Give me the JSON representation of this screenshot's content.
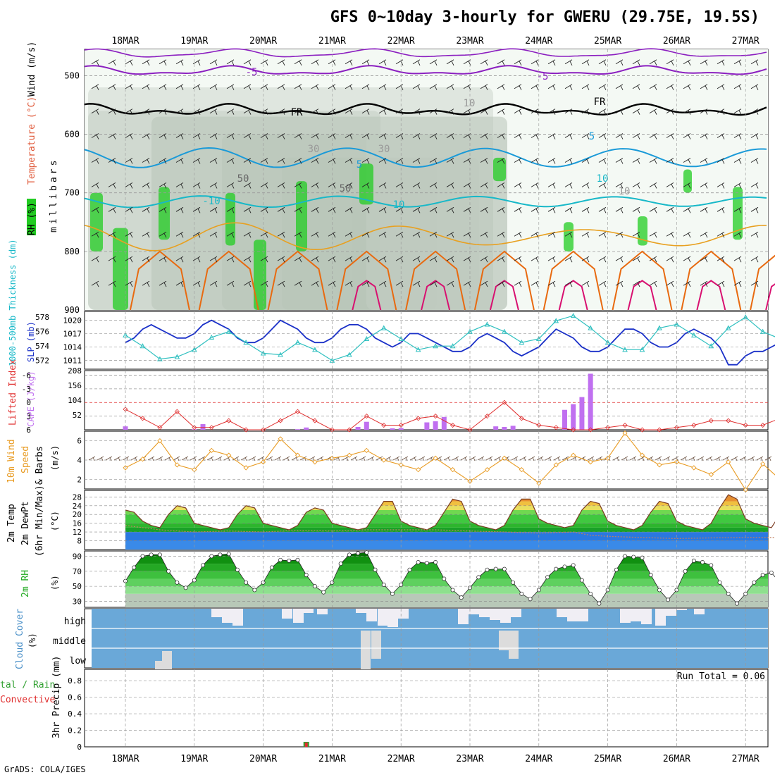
{
  "title": "GFS 0~10day 3-hourly for GWERU (29.75E, 19.5S)",
  "credit": "GrADS: COLA/IGES",
  "date_labels": [
    "18MAR",
    "19MAR",
    "20MAR",
    "21MAR",
    "22MAR",
    "23MAR",
    "24MAR",
    "25MAR",
    "26MAR",
    "27MAR"
  ],
  "colors": {
    "rh_green": "#22cc22",
    "rh_light": "#e8f3e8",
    "rh_gray": "#b8c4b8",
    "temp_purple": "#8b1fc0",
    "temp_black": "#000000",
    "temp_blue": "#1a9ad8",
    "temp_cyan": "#17b8c8",
    "temp_orange": "#e8a020",
    "temp_darkorange": "#e86a10",
    "temp_magenta": "#d81070",
    "slp_blue": "#1a30c8",
    "thick_cyan": "#30c0c0",
    "li_red": "#e03030",
    "cape_purple": "#c070f0",
    "wind_orange": "#e89a20",
    "t2m_fill": "#e89030",
    "dew_blue": "#2a78e0",
    "cloud_blue": "#6aa8d8",
    "cloud_gray": "#dcdcdc",
    "precip_green": "#30a030",
    "precip_red": "#e03030"
  },
  "panels": {
    "upper_air": {
      "ylabel_parts": [
        "RH (%)",
        "Temperature (°C)",
        "Wind (m/s)"
      ],
      "yaxis_label": "millibars",
      "ticks": [
        "500",
        "600",
        "700",
        "800",
        "900"
      ],
      "contour_labels": [
        "-5",
        "-5",
        "FR",
        "FR",
        "5",
        "5",
        "10",
        "10",
        "-10",
        "50",
        "50",
        "30",
        "30",
        "10",
        "10"
      ]
    },
    "slp": {
      "ylabel_left": "1000-500mb Thickness (dm)",
      "ylabel_right": "SLP (mb)",
      "ticks_left": [
        "578",
        "576",
        "574",
        "572"
      ],
      "ticks_right": [
        "1020",
        "1017",
        "1014",
        "1011"
      ]
    },
    "cape": {
      "ylabel_left": "Lifted Index",
      "ylabel_right": "CAPE (J/kg)",
      "ticks_left": [
        "-6",
        "-3",
        "0",
        "3",
        "6"
      ],
      "ticks_right": [
        "208",
        "156",
        "104",
        "52"
      ]
    },
    "wind10": {
      "ylabel_parts": [
        "10m Wind",
        "Speed",
        "& Barbs"
      ],
      "units": "(m/s)",
      "ticks": [
        "6",
        "4",
        "2"
      ]
    },
    "temp2m": {
      "ylabel_parts": [
        "2m Temp",
        "2m DewPt",
        "(6hr Min/Max)"
      ],
      "units": "(°C)",
      "ticks": [
        "28",
        "24",
        "20",
        "16",
        "12",
        "8"
      ]
    },
    "rh2m": {
      "ylabel": "2m RH",
      "units": "(%)",
      "ticks": [
        "90",
        "70",
        "50",
        "30"
      ]
    },
    "cloud": {
      "ylabel": "Cloud Cover",
      "units": "(%)",
      "levels": [
        "high",
        "middle",
        "low"
      ]
    },
    "precip": {
      "ylabel_left_1": "tal / Rain",
      "ylabel_left_2": "Convective",
      "ylabel": "3hr Precip (mm)",
      "ticks": [
        "0.8",
        "0.6",
        "0.4",
        "0.2",
        "0"
      ],
      "annotation": "Run Total = 0.06"
    }
  },
  "chart_data": [
    {
      "type": "line",
      "name": "SLP",
      "units": "mb",
      "ylim": [
        1009,
        1022
      ],
      "x_days": [
        0,
        0.125,
        0.25,
        0.375,
        0.5,
        0.625,
        0.75,
        0.875,
        1,
        1.125,
        1.25,
        1.375,
        1.5,
        1.625,
        1.75,
        1.875,
        2,
        2.125,
        2.25,
        2.375,
        2.5,
        2.625,
        2.75,
        2.875,
        3,
        3.125,
        3.25,
        3.375,
        3.5,
        3.625,
        3.75,
        3.875,
        4,
        4.125,
        4.25,
        4.375,
        4.5,
        4.625,
        4.75,
        4.875,
        5,
        5.125,
        5.25,
        5.375,
        5.5,
        5.625,
        5.75,
        5.875,
        6,
        6.125,
        6.25,
        6.375,
        6.5,
        6.625,
        6.75,
        6.875,
        7,
        7.125,
        7.25,
        7.375,
        7.5,
        7.625,
        7.75,
        7.875,
        8,
        8.125,
        8.25,
        8.375,
        8.5,
        8.625,
        8.75,
        8.875,
        9,
        9.125,
        9.25,
        9.375,
        9.5
      ],
      "values": [
        1015,
        1016,
        1018,
        1019,
        1018,
        1017,
        1016,
        1016,
        1017,
        1019,
        1020,
        1019,
        1018,
        1016,
        1015,
        1015,
        1016,
        1018,
        1020,
        1019,
        1018,
        1016,
        1015,
        1015,
        1016,
        1018,
        1019,
        1019,
        1018,
        1016,
        1015,
        1014,
        1015,
        1017,
        1017,
        1016,
        1015,
        1014,
        1013,
        1013,
        1014,
        1016,
        1017,
        1016,
        1015,
        1013,
        1012,
        1013,
        1014,
        1016,
        1018,
        1017,
        1016,
        1014,
        1013,
        1013,
        1014,
        1016,
        1018,
        1018,
        1017,
        1015,
        1014,
        1014,
        1015,
        1017,
        1018,
        1017,
        1016,
        1014,
        1010,
        1010,
        1012,
        1013,
        1013,
        1014,
        1015
      ]
    },
    {
      "type": "line",
      "name": "1000-500mb Thickness",
      "units": "dm",
      "ylim": [
        570.8,
        578.8
      ],
      "x_days": [
        0,
        0.25,
        0.5,
        0.75,
        1,
        1.25,
        1.5,
        1.75,
        2,
        2.25,
        2.5,
        2.75,
        3,
        3.25,
        3.5,
        3.75,
        4,
        4.25,
        4.5,
        4.75,
        5,
        5.25,
        5.5,
        5.75,
        6,
        6.25,
        6.5,
        6.75,
        7,
        7.25,
        7.5,
        7.75,
        8,
        8.25,
        8.5,
        8.75,
        9,
        9.25,
        9.5
      ],
      "values": [
        575.5,
        574,
        572.2,
        572.5,
        573.5,
        575.2,
        576,
        574.5,
        573,
        572.8,
        574.5,
        573.5,
        572,
        572.8,
        575,
        576.5,
        575,
        573.5,
        574,
        574,
        576,
        577,
        576,
        574.5,
        575,
        577.5,
        578.2,
        576.5,
        574.5,
        573.5,
        573.5,
        576.5,
        577,
        575.5,
        574,
        576.5,
        578,
        576,
        575
      ]
    },
    {
      "type": "line",
      "name": "Lifted Index",
      "ylim": [
        6,
        -7
      ],
      "x_days": [
        0,
        0.25,
        0.5,
        0.75,
        1,
        1.25,
        1.5,
        1.75,
        2,
        2.25,
        2.5,
        2.75,
        3,
        3.25,
        3.5,
        3.75,
        4,
        4.25,
        4.5,
        4.75,
        5,
        5.25,
        5.5,
        5.75,
        6,
        6.25,
        6.5,
        6.75,
        7,
        7.25,
        7.5,
        7.75,
        8,
        8.25,
        8.5,
        8.75,
        9,
        9.25,
        9.5
      ],
      "values": [
        1.5,
        3.5,
        5.5,
        2,
        5.5,
        5.5,
        4,
        6,
        6,
        4,
        2,
        4,
        6,
        6,
        3,
        5,
        5,
        3.5,
        3,
        5,
        6,
        3,
        0,
        3.5,
        5,
        5.5,
        6,
        6,
        5.5,
        5,
        6,
        6,
        5.5,
        5,
        4,
        4,
        5,
        5,
        3.5
      ]
    },
    {
      "type": "bar",
      "name": "CAPE",
      "units": "J/kg",
      "ylim": [
        0,
        208
      ],
      "x_days": [
        0,
        1,
        1.125,
        2.5,
        2.625,
        3.375,
        3.5,
        3.875,
        4,
        4.375,
        4.5,
        4.625,
        5.375,
        5.5,
        5.625,
        6.375,
        6.5,
        6.625,
        6.75
      ],
      "values": [
        12,
        2,
        20,
        2,
        8,
        10,
        28,
        5,
        6,
        26,
        30,
        45,
        12,
        10,
        14,
        70,
        90,
        115,
        197
      ]
    },
    {
      "type": "line",
      "name": "10m Wind Speed",
      "units": "m/s",
      "ylim": [
        1,
        7
      ],
      "x_days": [
        0,
        0.25,
        0.5,
        0.75,
        1,
        1.25,
        1.5,
        1.75,
        2,
        2.25,
        2.5,
        2.75,
        3,
        3.25,
        3.5,
        3.75,
        4,
        4.25,
        4.5,
        4.75,
        5,
        5.25,
        5.5,
        5.75,
        6,
        6.25,
        6.5,
        6.75,
        7,
        7.25,
        7.5,
        7.75,
        8,
        8.25,
        8.5,
        8.75,
        9,
        9.25,
        9.5
      ],
      "values": [
        3.2,
        4.1,
        6,
        3.5,
        3,
        5,
        4.5,
        3.2,
        3.8,
        6.2,
        4.5,
        3.8,
        4.2,
        4.5,
        5,
        4,
        3.5,
        3,
        4.2,
        3,
        1.8,
        3,
        4.2,
        3,
        1.6,
        3.5,
        4.5,
        3.8,
        4.2,
        6.8,
        4.5,
        3.5,
        3.8,
        3.2,
        2.5,
        3.8,
        0.9,
        3.6,
        2
      ]
    },
    {
      "type": "area",
      "name": "2m Temp",
      "units": "°C",
      "ylim": [
        4,
        31
      ],
      "x_days": [
        0,
        0.125,
        0.25,
        0.375,
        0.5,
        0.625,
        0.75,
        0.875,
        1,
        1.125,
        1.25,
        1.375,
        1.5,
        1.625,
        1.75,
        1.875,
        2,
        2.125,
        2.25,
        2.375,
        2.5,
        2.625,
        2.75,
        2.875,
        3,
        3.125,
        3.25,
        3.375,
        3.5,
        3.625,
        3.75,
        3.875,
        4,
        4.125,
        4.25,
        4.375,
        4.5,
        4.625,
        4.75,
        4.875,
        5,
        5.125,
        5.25,
        5.375,
        5.5,
        5.625,
        5.75,
        5.875,
        6,
        6.125,
        6.25,
        6.375,
        6.5,
        6.625,
        6.75,
        6.875,
        7,
        7.125,
        7.25,
        7.375,
        7.5,
        7.625,
        7.75,
        7.875,
        8,
        8.125,
        8.25,
        8.375,
        8.5,
        8.625,
        8.75,
        8.875,
        9,
        9.125,
        9.25,
        9.375,
        9.5
      ],
      "values": [
        22,
        21,
        17,
        15,
        14,
        20,
        24,
        23,
        16,
        15,
        14,
        13,
        14,
        20,
        24,
        23,
        16,
        15,
        14,
        13,
        15,
        21,
        23,
        22,
        16,
        15,
        14,
        13,
        14,
        20,
        26,
        26,
        17,
        15,
        14,
        13,
        15,
        21,
        27,
        26,
        17,
        15,
        14,
        13,
        15,
        22,
        27,
        27,
        18,
        16,
        15,
        14,
        15,
        22,
        26,
        25,
        17,
        15,
        14,
        13,
        15,
        21,
        26,
        25,
        17,
        15,
        14,
        13,
        16,
        23,
        29,
        27,
        18,
        16,
        15,
        14,
        20
      ]
    },
    {
      "type": "line",
      "name": "2m DewPt",
      "units": "°C",
      "ylim": [
        4,
        31
      ],
      "x_days": [
        0,
        0.5,
        1,
        1.5,
        2,
        2.5,
        3,
        3.5,
        4,
        4.5,
        5,
        5.5,
        6,
        6.5,
        6.75,
        7,
        7.5,
        8,
        8.5,
        9,
        9.5
      ],
      "values": [
        15,
        13,
        12,
        12.5,
        12,
        12.8,
        12.5,
        13,
        13,
        13,
        12.5,
        12,
        11.5,
        12,
        10.5,
        10,
        9.5,
        9,
        9.3,
        9.5,
        9.5
      ]
    },
    {
      "type": "area",
      "name": "2m RH",
      "units": "%",
      "ylim": [
        22,
        97
      ],
      "x_days": [
        0,
        0.125,
        0.25,
        0.375,
        0.5,
        0.625,
        0.75,
        0.875,
        1,
        1.125,
        1.25,
        1.375,
        1.5,
        1.625,
        1.75,
        1.875,
        2,
        2.125,
        2.25,
        2.375,
        2.5,
        2.625,
        2.75,
        2.875,
        3,
        3.125,
        3.25,
        3.375,
        3.5,
        3.625,
        3.75,
        3.875,
        4,
        4.125,
        4.25,
        4.375,
        4.5,
        4.625,
        4.75,
        4.875,
        5,
        5.125,
        5.25,
        5.375,
        5.5,
        5.625,
        5.75,
        5.875,
        6,
        6.125,
        6.25,
        6.375,
        6.5,
        6.625,
        6.75,
        6.875,
        7,
        7.125,
        7.25,
        7.375,
        7.5,
        7.625,
        7.75,
        7.875,
        8,
        8.125,
        8.25,
        8.375,
        8.5,
        8.625,
        8.75,
        8.875,
        9,
        9.125,
        9.25,
        9.375,
        9.5
      ],
      "values": [
        57,
        75,
        90,
        92,
        92,
        70,
        55,
        48,
        58,
        78,
        90,
        92,
        93,
        72,
        55,
        45,
        55,
        75,
        85,
        84,
        85,
        65,
        50,
        42,
        55,
        80,
        92,
        94,
        95,
        72,
        52,
        40,
        52,
        72,
        82,
        81,
        82,
        60,
        45,
        35,
        48,
        62,
        72,
        73,
        73,
        55,
        40,
        33,
        45,
        62,
        73,
        76,
        78,
        58,
        40,
        27,
        45,
        72,
        90,
        89,
        88,
        65,
        45,
        32,
        45,
        70,
        84,
        82,
        78,
        55,
        40,
        27,
        40,
        55,
        65,
        68,
        55
      ]
    },
    {
      "type": "bar",
      "name": "3hr Precip",
      "units": "mm",
      "ylim": [
        0,
        1
      ],
      "annotation": "Run Total = 0.06",
      "x_days": [
        2.625
      ],
      "values": [
        0.06
      ]
    }
  ]
}
